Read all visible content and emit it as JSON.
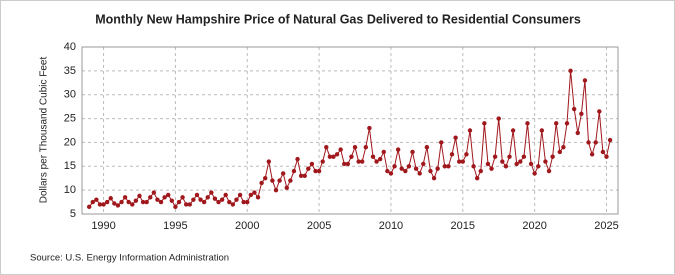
{
  "chart_data": {
    "type": "line",
    "title": "Monthly New Hampshire Price of Natural Gas Delivered to Residential Consumers",
    "y_label": "Dollars per Thousand Cubic Feet",
    "source": "Source: U.S. Energy Information Administration",
    "color": "#a0171c",
    "grid": true,
    "xlim": [
      1988.5,
      2025.8
    ],
    "xticks": [
      1990,
      1995,
      2000,
      2005,
      2010,
      2015,
      2020,
      2025
    ],
    "ylim": [
      5,
      40
    ],
    "yticks": [
      5,
      10,
      15,
      20,
      25,
      30,
      35,
      40
    ],
    "x": [
      1989,
      1989.25,
      1989.5,
      1989.75,
      1990,
      1990.25,
      1990.5,
      1990.75,
      1991,
      1991.25,
      1991.5,
      1991.75,
      1992,
      1992.25,
      1992.5,
      1992.75,
      1993,
      1993.25,
      1993.5,
      1993.75,
      1994,
      1994.25,
      1994.5,
      1994.75,
      1995,
      1995.25,
      1995.5,
      1995.75,
      1996,
      1996.25,
      1996.5,
      1996.75,
      1997,
      1997.25,
      1997.5,
      1997.75,
      1998,
      1998.25,
      1998.5,
      1998.75,
      1999,
      1999.25,
      1999.5,
      1999.75,
      2000,
      2000.25,
      2000.5,
      2000.75,
      2001,
      2001.25,
      2001.5,
      2001.75,
      2002,
      2002.25,
      2002.5,
      2002.75,
      2003,
      2003.25,
      2003.5,
      2003.75,
      2004,
      2004.25,
      2004.5,
      2004.75,
      2005,
      2005.25,
      2005.5,
      2005.75,
      2006,
      2006.25,
      2006.5,
      2006.75,
      2007,
      2007.25,
      2007.5,
      2007.75,
      2008,
      2008.25,
      2008.5,
      2008.75,
      2009,
      2009.25,
      2009.5,
      2009.75,
      2010,
      2010.25,
      2010.5,
      2010.75,
      2011,
      2011.25,
      2011.5,
      2011.75,
      2012,
      2012.25,
      2012.5,
      2012.75,
      2013,
      2013.25,
      2013.5,
      2013.75,
      2014,
      2014.25,
      2014.5,
      2014.75,
      2015,
      2015.25,
      2015.5,
      2015.75,
      2016,
      2016.25,
      2016.5,
      2016.75,
      2017,
      2017.25,
      2017.5,
      2017.75,
      2018,
      2018.25,
      2018.5,
      2018.75,
      2019,
      2019.25,
      2019.5,
      2019.75,
      2020,
      2020.25,
      2020.5,
      2020.75,
      2021,
      2021.25,
      2021.5,
      2021.75,
      2022,
      2022.25,
      2022.5,
      2022.75,
      2023,
      2023.25,
      2023.5,
      2023.75,
      2024,
      2024.25,
      2024.5,
      2024.75,
      2025,
      2025.25
    ],
    "values": [
      6.5,
      7.5,
      8,
      7,
      7,
      7.5,
      8.3,
      7.2,
      6.8,
      7.5,
      8.5,
      7.5,
      7,
      7.8,
      8.8,
      7.5,
      7.5,
      8.5,
      9.5,
      8,
      7.5,
      8.5,
      9,
      7.8,
      6.5,
      7.5,
      8.5,
      7,
      7,
      8,
      9,
      8,
      7.5,
      8.5,
      9.5,
      8.2,
      7.5,
      8,
      9,
      7.5,
      7,
      8,
      9,
      7.5,
      7.5,
      9,
      9.5,
      8.5,
      11.5,
      12.5,
      16,
      12,
      10,
      12,
      13.5,
      10.5,
      12,
      14,
      16.5,
      13,
      13,
      14.5,
      15.5,
      14,
      14,
      16,
      19,
      17,
      17,
      17.5,
      18.5,
      15.5,
      15.5,
      17,
      19,
      16,
      16,
      19,
      23,
      17,
      16,
      16.5,
      18,
      14,
      13.5,
      15,
      18.5,
      14.5,
      14,
      15,
      18,
      14.5,
      13.5,
      15.5,
      19,
      14,
      12.5,
      14.5,
      20,
      15,
      15,
      17.5,
      21,
      16,
      16,
      17.5,
      22.5,
      15,
      12.5,
      14,
      24,
      15.5,
      14.5,
      17,
      25,
      16,
      15,
      17,
      22.5,
      15.5,
      16,
      17,
      24,
      15.5,
      13.5,
      15,
      22.5,
      16,
      14,
      17,
      24,
      18,
      19,
      24,
      35,
      27,
      22,
      26,
      33,
      20,
      17.5,
      20,
      26.5,
      18,
      17,
      20.5
    ]
  }
}
